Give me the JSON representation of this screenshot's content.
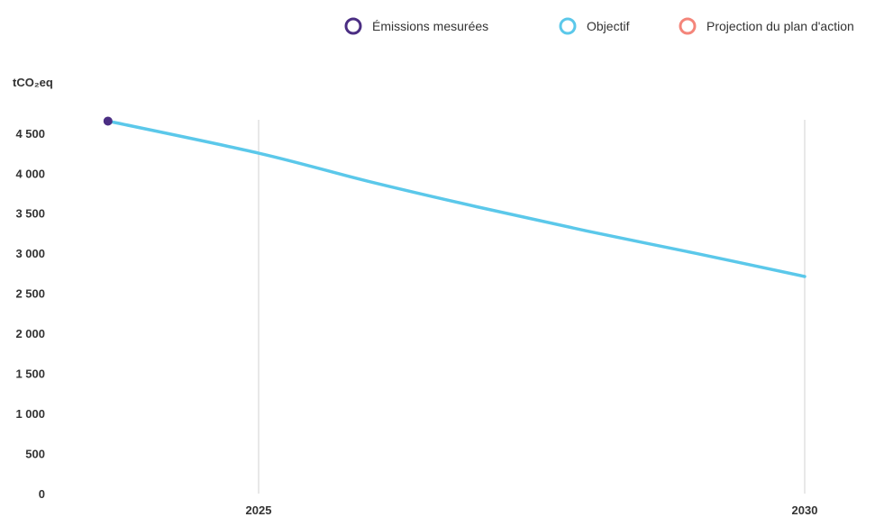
{
  "chart_data": {
    "type": "line",
    "ylabel": "tCO₂eq",
    "ylim": [
      0,
      4700
    ],
    "x_range": [
      2023,
      2031
    ],
    "y_ticks": [
      {
        "value": 0,
        "label": "0"
      },
      {
        "value": 500,
        "label": "500"
      },
      {
        "value": 1000,
        "label": "1 000"
      },
      {
        "value": 1500,
        "label": "1 500"
      },
      {
        "value": 2000,
        "label": "2 000"
      },
      {
        "value": 2500,
        "label": "2 500"
      },
      {
        "value": 3000,
        "label": "3 000"
      },
      {
        "value": 3500,
        "label": "3 500"
      },
      {
        "value": 4000,
        "label": "4 000"
      },
      {
        "value": 4500,
        "label": "4 500"
      }
    ],
    "x_ticks": [
      {
        "value": 2025,
        "label": "2025"
      },
      {
        "value": 2030,
        "label": "2030"
      }
    ],
    "gridlines": "vertical",
    "legend_placement": "top-right",
    "legend": [
      {
        "label": "Émissions mesurées",
        "color": "#4b2e83"
      },
      {
        "label": "Objectif",
        "color": "#5bc8ea"
      },
      {
        "label": "Projection du plan d'action",
        "color": "#f4857a"
      }
    ],
    "series": [
      {
        "name": "Émissions mesurées",
        "kind": "points",
        "color": "#4b2e83",
        "points": [
          {
            "x": 2024,
            "y": 4650
          }
        ]
      },
      {
        "name": "Objectif",
        "kind": "line",
        "color": "#5bc8ea",
        "points": [
          {
            "x": 2024,
            "y": 4650
          },
          {
            "x": 2025,
            "y": 4250
          },
          {
            "x": 2026,
            "y": 3900
          },
          {
            "x": 2027,
            "y": 3580
          },
          {
            "x": 2028,
            "y": 3280
          },
          {
            "x": 2029,
            "y": 3000
          },
          {
            "x": 2030,
            "y": 2710
          }
        ]
      },
      {
        "name": "Projection du plan d'action",
        "kind": "line",
        "color": "#f4857a",
        "points": []
      }
    ]
  }
}
